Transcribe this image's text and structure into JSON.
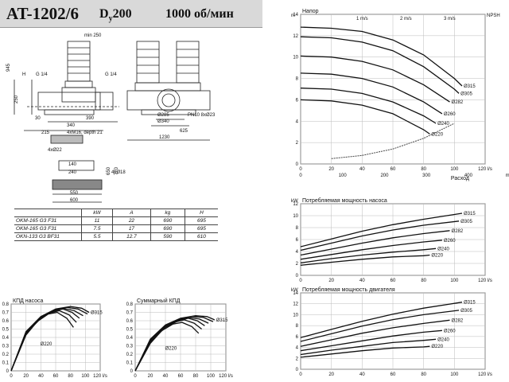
{
  "header": {
    "model": "AT-1202/6",
    "dn_prefix": "D",
    "dn_sub": "y",
    "dn_value": "200",
    "speed": "1000 об/мин"
  },
  "drawing": {
    "dims": {
      "min250": "min 250",
      "d945": "945",
      "h": "H",
      "d250": "250",
      "g14a": "G 1/4",
      "g14b": "G 1/4",
      "d30": "30",
      "d390": "390",
      "d340": "340",
      "d215": "215",
      "m16": "4xM16, depth 21",
      "d1230": "1230",
      "d625": "625",
      "pn10": "PN10 8xØ23",
      "d285": "Ø285",
      "d340c": "Ø340",
      "d4x22": "4xØ22",
      "d140": "140",
      "d240": "240",
      "d18": "4xØ18",
      "d650": "650",
      "d770": "770",
      "d550": "550",
      "d600": "600"
    }
  },
  "spec_table": {
    "headers": [
      "",
      "kW",
      "A",
      "kg",
      "H"
    ],
    "rows": [
      [
        "OKM-165 G3 F31",
        "11",
        "22",
        "690",
        "695"
      ],
      [
        "OKM-165 G3 F31",
        "7.5",
        "17",
        "690",
        "695"
      ],
      [
        "OKN-133 G3 BF31",
        "5.5",
        "12.7",
        "590",
        "610"
      ]
    ]
  },
  "chart_data": [
    {
      "id": "head",
      "type": "line",
      "title": "Напор",
      "ylabel_left": "m",
      "ylabel_right": "NPSH",
      "xlabel": "Расход",
      "x_unit_top": "l/s",
      "x_unit_bottom": "m³/h",
      "xlim_ls": [
        0,
        120
      ],
      "ylim": [
        0,
        14
      ],
      "x_ticks_ls": [
        0,
        20,
        40,
        60,
        80,
        100,
        "120 l/s"
      ],
      "x_ticks_m3h": [
        0,
        100,
        200,
        300,
        400,
        "m³/h"
      ],
      "y_ticks": [
        0,
        2,
        4,
        6,
        8,
        10,
        12,
        14
      ],
      "velocity_labels": [
        "1 m/s",
        "2 m/s",
        "3 m/s"
      ],
      "series": [
        {
          "name": "Ø315",
          "x": [
            0,
            20,
            40,
            60,
            80,
            100,
            105
          ],
          "y": [
            12.8,
            12.7,
            12.4,
            11.6,
            10.2,
            8.0,
            7.3
          ]
        },
        {
          "name": "Ø305",
          "x": [
            0,
            20,
            40,
            60,
            80,
            100,
            103
          ],
          "y": [
            11.9,
            11.8,
            11.4,
            10.6,
            9.1,
            7.0,
            6.6
          ]
        },
        {
          "name": "Ø282",
          "x": [
            0,
            20,
            40,
            60,
            80,
            97
          ],
          "y": [
            10.1,
            10.0,
            9.6,
            8.8,
            7.4,
            5.8
          ]
        },
        {
          "name": "Ø260",
          "x": [
            0,
            20,
            40,
            60,
            80,
            92
          ],
          "y": [
            8.5,
            8.4,
            8.0,
            7.2,
            5.8,
            4.7
          ]
        },
        {
          "name": "Ø240",
          "x": [
            0,
            20,
            40,
            60,
            80,
            88
          ],
          "y": [
            7.1,
            7.0,
            6.6,
            5.8,
            4.5,
            3.8
          ]
        },
        {
          "name": "Ø220",
          "x": [
            0,
            20,
            40,
            60,
            80,
            84
          ],
          "y": [
            6.0,
            5.9,
            5.5,
            4.7,
            3.2,
            2.8
          ]
        }
      ],
      "npsh": {
        "x": [
          20,
          40,
          60,
          80,
          100
        ],
        "y": [
          0.5,
          0.8,
          1.4,
          2.4,
          3.8
        ]
      }
    },
    {
      "id": "pump_power",
      "type": "line",
      "title": "Потребляемая мощность насоса",
      "ylabel": "kW",
      "xlim": [
        0,
        120
      ],
      "ylim": [
        0,
        12
      ],
      "x_ticks": [
        0,
        20,
        40,
        60,
        80,
        100,
        "120 l/s"
      ],
      "y_ticks": [
        0,
        2,
        4,
        6,
        8,
        10,
        12
      ],
      "series": [
        {
          "name": "Ø315",
          "x": [
            0,
            20,
            40,
            60,
            80,
            105
          ],
          "y": [
            4.8,
            6.1,
            7.4,
            8.5,
            9.4,
            10.4
          ]
        },
        {
          "name": "Ø305",
          "x": [
            0,
            20,
            40,
            60,
            80,
            103
          ],
          "y": [
            4.2,
            5.4,
            6.6,
            7.6,
            8.4,
            9.1
          ]
        },
        {
          "name": "Ø282",
          "x": [
            0,
            20,
            40,
            60,
            80,
            97
          ],
          "y": [
            3.4,
            4.4,
            5.4,
            6.3,
            7.0,
            7.5
          ]
        },
        {
          "name": "Ø260",
          "x": [
            0,
            20,
            40,
            60,
            80,
            92
          ],
          "y": [
            2.7,
            3.5,
            4.3,
            5.0,
            5.6,
            5.9
          ]
        },
        {
          "name": "Ø240",
          "x": [
            0,
            20,
            40,
            60,
            80,
            88
          ],
          "y": [
            2.1,
            2.8,
            3.4,
            3.9,
            4.3,
            4.5
          ]
        },
        {
          "name": "Ø220",
          "x": [
            0,
            20,
            40,
            60,
            80,
            84
          ],
          "y": [
            1.7,
            2.2,
            2.7,
            3.1,
            3.3,
            3.4
          ]
        }
      ]
    },
    {
      "id": "motor_power",
      "type": "line",
      "title": "Потребляемая мощность двигателя",
      "ylabel": "kW",
      "xlim": [
        0,
        120
      ],
      "ylim": [
        0,
        14
      ],
      "x_ticks": [
        0,
        20,
        40,
        60,
        80,
        100,
        "120 l/s"
      ],
      "y_ticks": [
        0,
        2,
        4,
        6,
        8,
        10,
        12,
        14
      ],
      "series": [
        {
          "name": "Ø315",
          "x": [
            0,
            20,
            40,
            60,
            80,
            105
          ],
          "y": [
            5.8,
            7.3,
            8.8,
            10.1,
            11.2,
            12.3
          ]
        },
        {
          "name": "Ø305",
          "x": [
            0,
            20,
            40,
            60,
            80,
            103
          ],
          "y": [
            5.1,
            6.5,
            7.9,
            9.1,
            10.0,
            10.8
          ]
        },
        {
          "name": "Ø282",
          "x": [
            0,
            20,
            40,
            60,
            80,
            97
          ],
          "y": [
            4.2,
            5.4,
            6.6,
            7.6,
            8.4,
            9.0
          ]
        },
        {
          "name": "Ø260",
          "x": [
            0,
            20,
            40,
            60,
            80,
            92
          ],
          "y": [
            3.4,
            4.3,
            5.2,
            6.1,
            6.8,
            7.1
          ]
        },
        {
          "name": "Ø240",
          "x": [
            0,
            20,
            40,
            60,
            80,
            88
          ],
          "y": [
            2.7,
            3.5,
            4.2,
            4.9,
            5.3,
            5.5
          ]
        },
        {
          "name": "Ø220",
          "x": [
            0,
            20,
            40,
            60,
            80,
            84
          ],
          "y": [
            2.2,
            2.8,
            3.4,
            3.9,
            4.1,
            4.2
          ]
        }
      ]
    },
    {
      "id": "pump_eff",
      "type": "line",
      "title": "КПД насоса",
      "xlim": [
        0,
        120
      ],
      "ylim": [
        0,
        0.8
      ],
      "x_ticks": [
        0,
        20,
        40,
        60,
        80,
        100,
        "120 l/s"
      ],
      "y_ticks": [
        0,
        0.1,
        0.2,
        0.3,
        0.4,
        0.5,
        0.6,
        0.7,
        0.8
      ],
      "label_top": "Ø315",
      "label_bottom": "Ø220",
      "series": [
        {
          "name": "Ø315",
          "x": [
            0,
            20,
            40,
            60,
            80,
            95,
            105
          ],
          "y": [
            0,
            0.47,
            0.65,
            0.74,
            0.77,
            0.75,
            0.7
          ]
        },
        {
          "name": "Ø305",
          "x": [
            0,
            20,
            40,
            60,
            75,
            90,
            103
          ],
          "y": [
            0,
            0.46,
            0.64,
            0.73,
            0.76,
            0.74,
            0.68
          ]
        },
        {
          "name": "Ø282",
          "x": [
            0,
            20,
            40,
            55,
            70,
            85,
            97
          ],
          "y": [
            0,
            0.45,
            0.63,
            0.71,
            0.75,
            0.72,
            0.66
          ]
        },
        {
          "name": "Ø260",
          "x": [
            0,
            20,
            40,
            55,
            70,
            82,
            92
          ],
          "y": [
            0,
            0.45,
            0.63,
            0.71,
            0.74,
            0.7,
            0.63
          ]
        },
        {
          "name": "Ø240",
          "x": [
            0,
            20,
            35,
            50,
            65,
            78,
            88
          ],
          "y": [
            0,
            0.44,
            0.6,
            0.69,
            0.72,
            0.67,
            0.58
          ]
        },
        {
          "name": "Ø220",
          "x": [
            0,
            20,
            35,
            50,
            62,
            75,
            84
          ],
          "y": [
            0,
            0.43,
            0.59,
            0.68,
            0.7,
            0.63,
            0.52
          ]
        }
      ]
    },
    {
      "id": "total_eff",
      "type": "line",
      "title": "Суммарный КПД",
      "xlim": [
        0,
        120
      ],
      "ylim": [
        0,
        0.8
      ],
      "x_ticks": [
        0,
        20,
        40,
        60,
        80,
        100,
        "120 l/s"
      ],
      "y_ticks": [
        0,
        0.1,
        0.2,
        0.3,
        0.4,
        0.5,
        0.6,
        0.7,
        0.8
      ],
      "label_top": "Ø315",
      "label_bottom": "Ø220",
      "series": [
        {
          "name": "Ø315",
          "x": [
            0,
            20,
            40,
            60,
            80,
            95,
            105
          ],
          "y": [
            0,
            0.38,
            0.55,
            0.63,
            0.66,
            0.65,
            0.61
          ]
        },
        {
          "name": "Ø305",
          "x": [
            0,
            20,
            40,
            60,
            75,
            90,
            103
          ],
          "y": [
            0,
            0.37,
            0.54,
            0.62,
            0.65,
            0.64,
            0.59
          ]
        },
        {
          "name": "Ø282",
          "x": [
            0,
            20,
            40,
            55,
            70,
            85,
            97
          ],
          "y": [
            0,
            0.36,
            0.53,
            0.6,
            0.64,
            0.62,
            0.57
          ]
        },
        {
          "name": "Ø260",
          "x": [
            0,
            20,
            40,
            55,
            70,
            82,
            92
          ],
          "y": [
            0,
            0.35,
            0.52,
            0.59,
            0.63,
            0.6,
            0.54
          ]
        },
        {
          "name": "Ø240",
          "x": [
            0,
            20,
            35,
            50,
            65,
            78,
            88
          ],
          "y": [
            0,
            0.34,
            0.5,
            0.58,
            0.61,
            0.57,
            0.5
          ]
        },
        {
          "name": "Ø220",
          "x": [
            0,
            20,
            35,
            50,
            62,
            75,
            84
          ],
          "y": [
            0,
            0.33,
            0.48,
            0.56,
            0.58,
            0.53,
            0.45
          ]
        }
      ]
    }
  ]
}
